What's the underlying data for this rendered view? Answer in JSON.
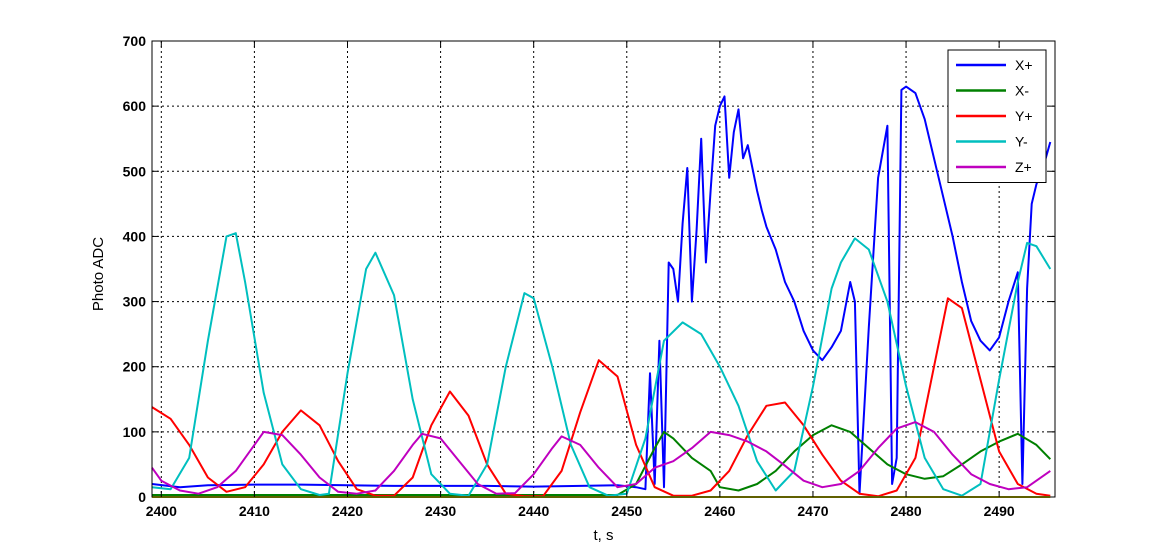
{
  "chart_data": {
    "type": "line",
    "xlabel": "t, s",
    "ylabel": "Photo ADC",
    "xlim": [
      2399,
      2496
    ],
    "ylim": [
      0,
      700
    ],
    "xticks": [
      2400,
      2410,
      2420,
      2430,
      2440,
      2450,
      2460,
      2470,
      2480,
      2490
    ],
    "yticks": [
      0,
      100,
      200,
      300,
      400,
      500,
      600,
      700
    ],
    "grid": true,
    "legend_position": "top-right",
    "series": [
      {
        "name": "X+",
        "color": "#0000ff",
        "points": [
          [
            2399,
            20
          ],
          [
            2402,
            15
          ],
          [
            2405,
            18
          ],
          [
            2410,
            19
          ],
          [
            2415,
            19
          ],
          [
            2420,
            18
          ],
          [
            2425,
            17
          ],
          [
            2430,
            17
          ],
          [
            2435,
            17
          ],
          [
            2440,
            16
          ],
          [
            2445,
            17
          ],
          [
            2449,
            18
          ],
          [
            2451,
            15
          ],
          [
            2452,
            12
          ],
          [
            2452.5,
            190
          ],
          [
            2453,
            20
          ],
          [
            2453.5,
            240
          ],
          [
            2454,
            15
          ],
          [
            2454.5,
            360
          ],
          [
            2455,
            350
          ],
          [
            2455.5,
            300
          ],
          [
            2456,
            420
          ],
          [
            2456.5,
            505
          ],
          [
            2457,
            300
          ],
          [
            2457.5,
            410
          ],
          [
            2458,
            550
          ],
          [
            2458.5,
            360
          ],
          [
            2459,
            470
          ],
          [
            2459.5,
            570
          ],
          [
            2460,
            600
          ],
          [
            2460.5,
            615
          ],
          [
            2461,
            490
          ],
          [
            2461.5,
            560
          ],
          [
            2462,
            595
          ],
          [
            2462.5,
            520
          ],
          [
            2463,
            540
          ],
          [
            2463.5,
            505
          ],
          [
            2464,
            470
          ],
          [
            2464.5,
            440
          ],
          [
            2465,
            415
          ],
          [
            2466,
            380
          ],
          [
            2467,
            330
          ],
          [
            2468,
            300
          ],
          [
            2469,
            255
          ],
          [
            2470,
            225
          ],
          [
            2471,
            210
          ],
          [
            2472,
            230
          ],
          [
            2473,
            255
          ],
          [
            2474,
            330
          ],
          [
            2474.5,
            300
          ],
          [
            2475,
            5
          ],
          [
            2476,
            260
          ],
          [
            2477,
            490
          ],
          [
            2478,
            570
          ],
          [
            2478.5,
            20
          ],
          [
            2479,
            60
          ],
          [
            2479.5,
            625
          ],
          [
            2480,
            630
          ],
          [
            2481,
            620
          ],
          [
            2482,
            580
          ],
          [
            2483,
            520
          ],
          [
            2484,
            460
          ],
          [
            2485,
            400
          ],
          [
            2486,
            330
          ],
          [
            2487,
            270
          ],
          [
            2488,
            240
          ],
          [
            2489,
            225
          ],
          [
            2490,
            245
          ],
          [
            2491,
            300
          ],
          [
            2492,
            345
          ],
          [
            2492.5,
            20
          ],
          [
            2493,
            320
          ],
          [
            2493.5,
            450
          ],
          [
            2494,
            480
          ],
          [
            2495,
            520
          ],
          [
            2495.5,
            545
          ]
        ]
      },
      {
        "name": "X-",
        "color": "#008000",
        "points": [
          [
            2399,
            3
          ],
          [
            2410,
            3
          ],
          [
            2420,
            3
          ],
          [
            2430,
            3
          ],
          [
            2440,
            3
          ],
          [
            2449,
            3
          ],
          [
            2451,
            20
          ],
          [
            2453,
            75
          ],
          [
            2454,
            100
          ],
          [
            2455,
            90
          ],
          [
            2457,
            60
          ],
          [
            2459,
            40
          ],
          [
            2460,
            15
          ],
          [
            2462,
            10
          ],
          [
            2464,
            20
          ],
          [
            2466,
            40
          ],
          [
            2468,
            70
          ],
          [
            2470,
            95
          ],
          [
            2472,
            110
          ],
          [
            2474,
            100
          ],
          [
            2476,
            75
          ],
          [
            2478,
            50
          ],
          [
            2480,
            35
          ],
          [
            2482,
            28
          ],
          [
            2484,
            32
          ],
          [
            2486,
            50
          ],
          [
            2488,
            70
          ],
          [
            2490,
            85
          ],
          [
            2492,
            97
          ],
          [
            2494,
            80
          ],
          [
            2495.5,
            58
          ]
        ]
      },
      {
        "name": "Y+",
        "color": "#ff0000",
        "points": [
          [
            2399,
            138
          ],
          [
            2401,
            120
          ],
          [
            2403,
            80
          ],
          [
            2405,
            30
          ],
          [
            2407,
            8
          ],
          [
            2409,
            15
          ],
          [
            2411,
            50
          ],
          [
            2413,
            100
          ],
          [
            2415,
            133
          ],
          [
            2417,
            110
          ],
          [
            2419,
            55
          ],
          [
            2421,
            12
          ],
          [
            2423,
            2
          ],
          [
            2425,
            2
          ],
          [
            2427,
            30
          ],
          [
            2429,
            110
          ],
          [
            2431,
            162
          ],
          [
            2433,
            125
          ],
          [
            2435,
            50
          ],
          [
            2437,
            5
          ],
          [
            2439,
            1
          ],
          [
            2441,
            1
          ],
          [
            2443,
            40
          ],
          [
            2445,
            130
          ],
          [
            2447,
            210
          ],
          [
            2449,
            185
          ],
          [
            2451,
            80
          ],
          [
            2453,
            15
          ],
          [
            2455,
            2
          ],
          [
            2457,
            2
          ],
          [
            2459,
            10
          ],
          [
            2461,
            40
          ],
          [
            2463,
            95
          ],
          [
            2465,
            140
          ],
          [
            2467,
            145
          ],
          [
            2469,
            110
          ],
          [
            2471,
            65
          ],
          [
            2473,
            25
          ],
          [
            2475,
            5
          ],
          [
            2477,
            1
          ],
          [
            2479,
            10
          ],
          [
            2481,
            60
          ],
          [
            2483,
            200
          ],
          [
            2484.5,
            305
          ],
          [
            2486,
            290
          ],
          [
            2488,
            180
          ],
          [
            2490,
            70
          ],
          [
            2492,
            20
          ],
          [
            2494,
            5
          ],
          [
            2495.5,
            2
          ]
        ]
      },
      {
        "name": "Y-",
        "color": "#00bfbf",
        "points": [
          [
            2399,
            15
          ],
          [
            2401,
            12
          ],
          [
            2403,
            60
          ],
          [
            2405,
            240
          ],
          [
            2407,
            400
          ],
          [
            2408,
            405
          ],
          [
            2409,
            330
          ],
          [
            2411,
            160
          ],
          [
            2413,
            50
          ],
          [
            2415,
            12
          ],
          [
            2417,
            3
          ],
          [
            2418,
            5
          ],
          [
            2420,
            190
          ],
          [
            2422,
            350
          ],
          [
            2423,
            375
          ],
          [
            2425,
            310
          ],
          [
            2427,
            150
          ],
          [
            2429,
            35
          ],
          [
            2431,
            5
          ],
          [
            2433,
            2
          ],
          [
            2435,
            50
          ],
          [
            2437,
            200
          ],
          [
            2439,
            313
          ],
          [
            2440,
            305
          ],
          [
            2442,
            200
          ],
          [
            2444,
            80
          ],
          [
            2446,
            15
          ],
          [
            2448,
            2
          ],
          [
            2450,
            5
          ],
          [
            2452,
            90
          ],
          [
            2454,
            240
          ],
          [
            2456,
            268
          ],
          [
            2458,
            250
          ],
          [
            2460,
            200
          ],
          [
            2462,
            140
          ],
          [
            2464,
            55
          ],
          [
            2466,
            10
          ],
          [
            2468,
            40
          ],
          [
            2470,
            170
          ],
          [
            2472,
            320
          ],
          [
            2473,
            360
          ],
          [
            2474.5,
            397
          ],
          [
            2476,
            380
          ],
          [
            2478,
            300
          ],
          [
            2480,
            170
          ],
          [
            2482,
            60
          ],
          [
            2484,
            12
          ],
          [
            2486,
            2
          ],
          [
            2488,
            20
          ],
          [
            2490,
            180
          ],
          [
            2492,
            330
          ],
          [
            2493,
            390
          ],
          [
            2494,
            385
          ],
          [
            2495.5,
            350
          ]
        ]
      },
      {
        "name": "Z+",
        "color": "#bf00bf",
        "points": [
          [
            2399,
            45
          ],
          [
            2400,
            25
          ],
          [
            2402,
            10
          ],
          [
            2404,
            5
          ],
          [
            2406,
            15
          ],
          [
            2408,
            40
          ],
          [
            2410,
            80
          ],
          [
            2411,
            100
          ],
          [
            2413,
            95
          ],
          [
            2415,
            65
          ],
          [
            2417,
            30
          ],
          [
            2419,
            8
          ],
          [
            2421,
            5
          ],
          [
            2423,
            10
          ],
          [
            2425,
            40
          ],
          [
            2427,
            80
          ],
          [
            2428,
            97
          ],
          [
            2430,
            90
          ],
          [
            2432,
            55
          ],
          [
            2434,
            20
          ],
          [
            2436,
            5
          ],
          [
            2438,
            6
          ],
          [
            2440,
            35
          ],
          [
            2442,
            75
          ],
          [
            2443,
            93
          ],
          [
            2445,
            80
          ],
          [
            2447,
            45
          ],
          [
            2449,
            15
          ],
          [
            2451,
            20
          ],
          [
            2453,
            45
          ],
          [
            2455,
            55
          ],
          [
            2457,
            75
          ],
          [
            2459,
            100
          ],
          [
            2461,
            95
          ],
          [
            2463,
            85
          ],
          [
            2465,
            70
          ],
          [
            2467,
            48
          ],
          [
            2469,
            25
          ],
          [
            2471,
            15
          ],
          [
            2473,
            20
          ],
          [
            2475,
            40
          ],
          [
            2477,
            75
          ],
          [
            2479,
            105
          ],
          [
            2481,
            115
          ],
          [
            2483,
            100
          ],
          [
            2485,
            65
          ],
          [
            2487,
            35
          ],
          [
            2489,
            20
          ],
          [
            2491,
            12
          ],
          [
            2493,
            15
          ],
          [
            2495.5,
            40
          ]
        ]
      },
      {
        "name": "",
        "color": "#bfbf00",
        "points": [
          [
            2399,
            0
          ],
          [
            2495.5,
            0
          ]
        ]
      }
    ]
  }
}
